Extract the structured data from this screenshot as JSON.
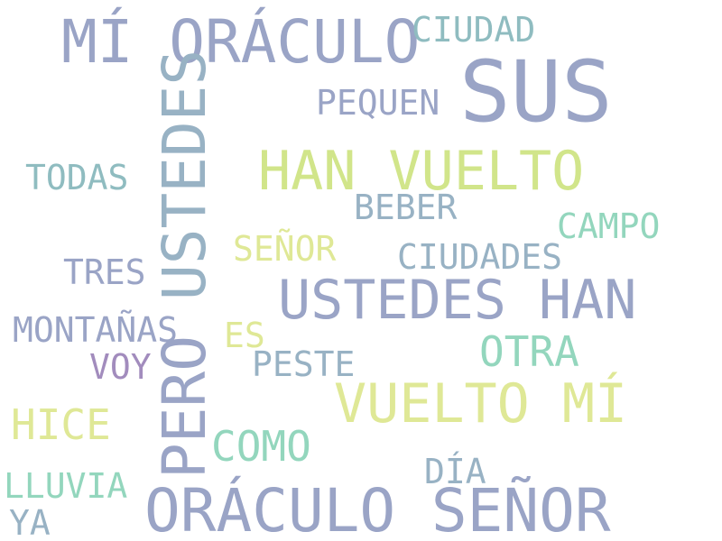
{
  "words": {
    "mi_oraculo": "MÍ ORÁCULO",
    "ciudad": "CIUDAD",
    "sus": "SUS",
    "pequen": "PEQUEN",
    "ustedes_vertical": "USTEDES",
    "han_vuelto": "HAN VUELTO",
    "todas": "TODAS",
    "beber": "BEBER",
    "campo": "CAMPO",
    "senor_small": "SEÑOR",
    "ciudades": "CIUDADES",
    "tres": "TRES",
    "ustedes_han": "USTEDES HAN",
    "montanas": "MONTAÑAS",
    "es": "ES",
    "otra": "OTRA",
    "voy": "VOY",
    "peste": "PESTE",
    "pero": "PERO",
    "vuelto_mi": "VUELTO MÍ",
    "hice": "HICE",
    "como": "COMO",
    "dia": "DÍA",
    "lluvia": "LLUVIA",
    "oraculo_senor": "ORÁCULO SEÑOR",
    "ya": "YA"
  }
}
